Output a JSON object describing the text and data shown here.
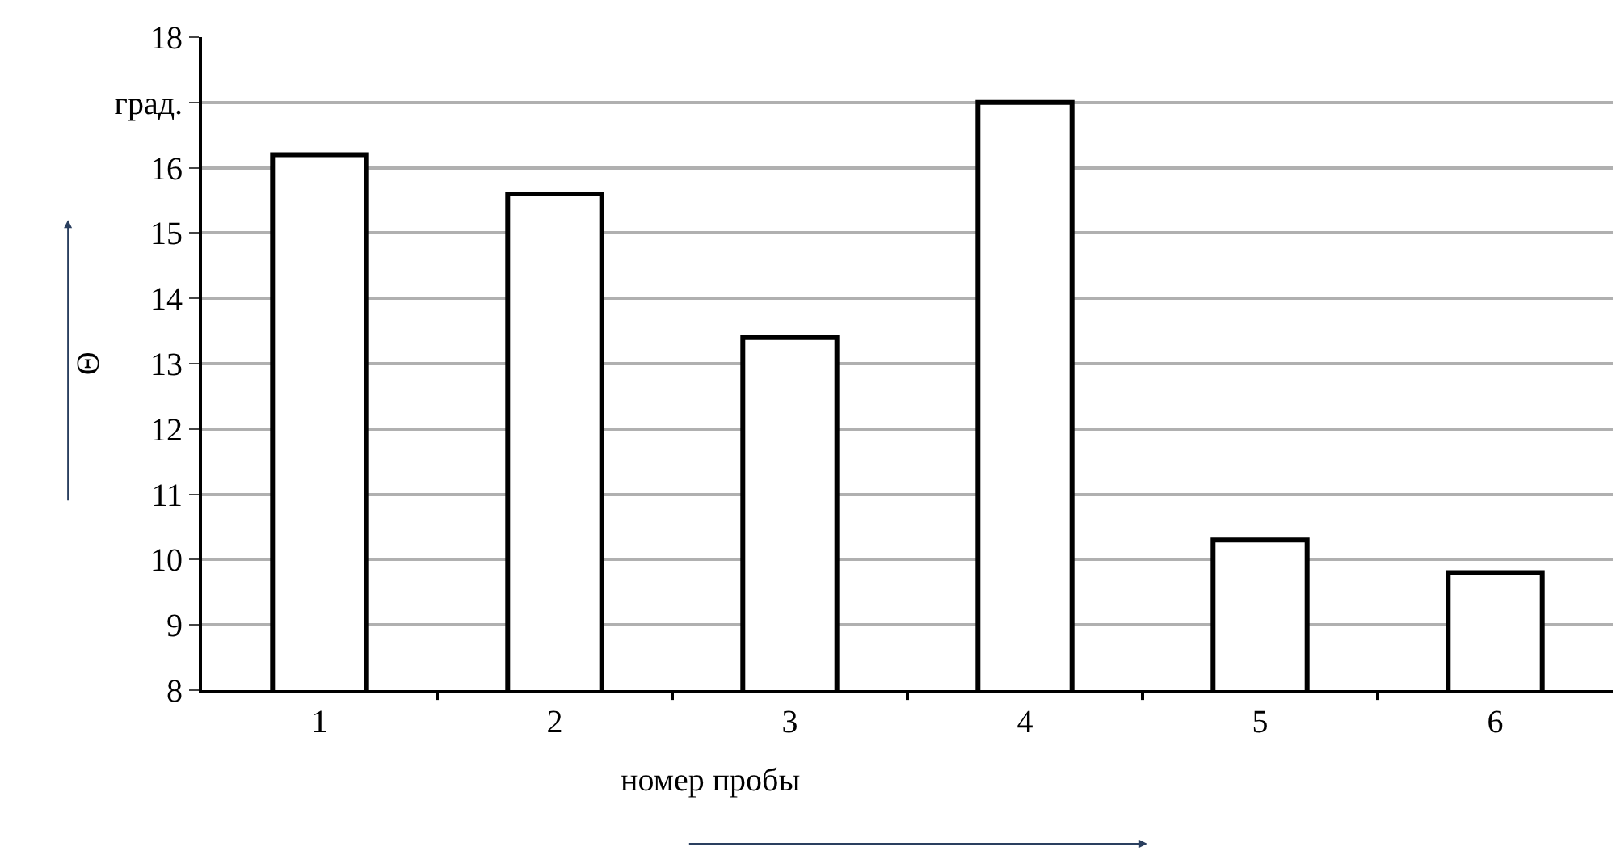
{
  "chart_data": {
    "type": "bar",
    "xlabel": "номер пробы",
    "ylabel": "Θ",
    "categories": [
      "1",
      "2",
      "3",
      "4",
      "5",
      "6"
    ],
    "values": [
      16.2,
      15.6,
      13.4,
      17.0,
      10.3,
      9.8
    ],
    "color": "#ffffff",
    "ylim": [
      8,
      18
    ],
    "yticks": [
      8,
      9,
      10,
      11,
      12,
      13,
      14,
      15,
      16,
      {
        "value": 17,
        "label": "град."
      },
      18
    ],
    "grid": "y",
    "legend": false
  }
}
